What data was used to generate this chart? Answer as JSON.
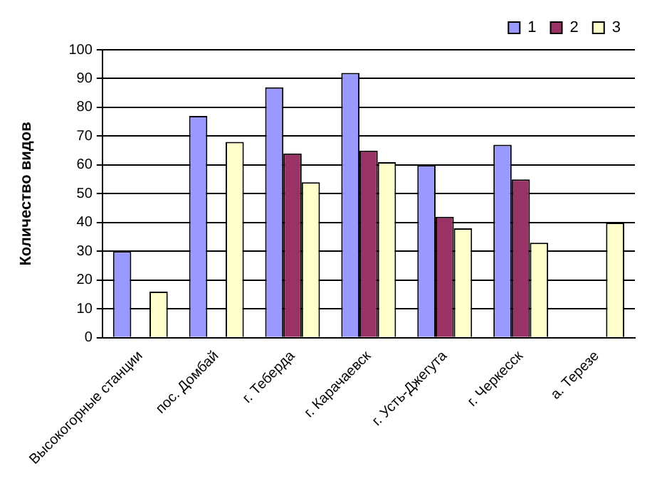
{
  "chart_data": {
    "type": "bar",
    "ylabel": "Количество видов",
    "categories": [
      "Высокогорные станции",
      "пос. Домбай",
      "г. Теберда",
      "г. Карачаевск",
      "г. Усть-Джегута",
      "г. Черкесск",
      "а. Терезе"
    ],
    "series": [
      {
        "name": "1",
        "color": "#9999ff",
        "values": [
          30,
          77,
          87,
          92,
          60,
          67,
          null
        ]
      },
      {
        "name": "2",
        "color": "#993366",
        "values": [
          null,
          null,
          64,
          65,
          42,
          55,
          null
        ]
      },
      {
        "name": "3",
        "color": "#ffffcc",
        "values": [
          16,
          68,
          54,
          61,
          38,
          33,
          40
        ]
      }
    ],
    "ylim": [
      0,
      100
    ],
    "yticks": [
      0,
      10,
      20,
      30,
      40,
      50,
      60,
      70,
      80,
      90,
      100
    ],
    "grid": "y",
    "legend": "top right"
  }
}
